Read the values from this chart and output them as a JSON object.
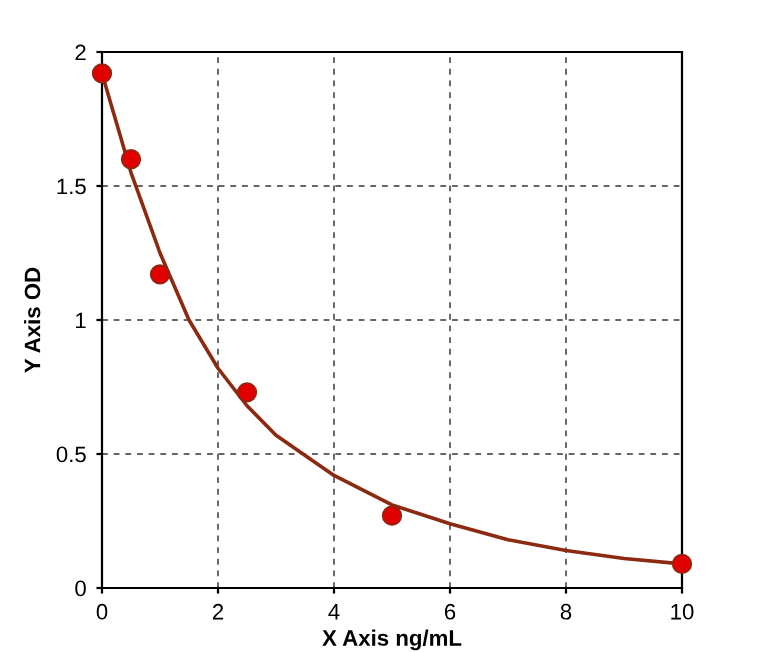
{
  "chart_data": {
    "type": "line",
    "xlabel": "X Axis ng/mL",
    "ylabel": "Y Axis OD",
    "xlim": [
      0,
      10
    ],
    "ylim": [
      0,
      2
    ],
    "xticks": [
      0,
      2,
      4,
      6,
      8,
      10
    ],
    "yticks": [
      0,
      0.5,
      1,
      1.5,
      2
    ],
    "grid": true,
    "series": [
      {
        "color": "#8b2a10",
        "x": [
          0,
          0.5,
          1,
          1.5,
          2,
          2.5,
          3,
          4,
          5,
          6,
          7,
          8,
          9,
          10
        ],
        "values": [
          1.92,
          1.55,
          1.25,
          1.0,
          0.82,
          0.68,
          0.57,
          0.42,
          0.31,
          0.24,
          0.18,
          0.14,
          0.11,
          0.09
        ]
      },
      {
        "type": "scatter",
        "marker": "circle",
        "color": "#e00000",
        "x": [
          0,
          0.5,
          1,
          2.5,
          5,
          10
        ],
        "values": [
          1.92,
          1.6,
          1.17,
          0.73,
          0.27,
          0.09
        ]
      }
    ]
  }
}
